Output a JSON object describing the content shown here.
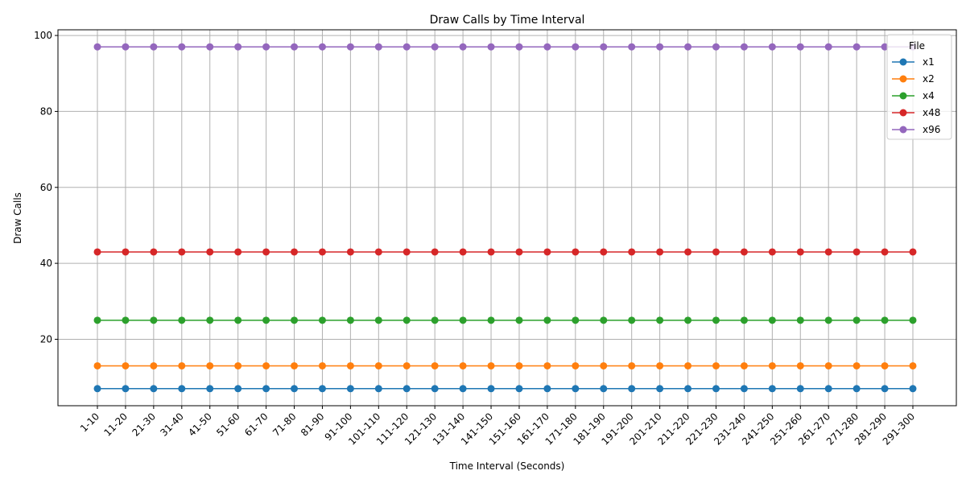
{
  "chart_data": {
    "type": "line",
    "title": "Draw Calls by Time Interval",
    "xlabel": "Time Interval (Seconds)",
    "ylabel": "Draw Calls",
    "categories": [
      "1-10",
      "11-20",
      "21-30",
      "31-40",
      "41-50",
      "51-60",
      "61-70",
      "71-80",
      "81-90",
      "91-100",
      "101-110",
      "111-120",
      "121-130",
      "131-140",
      "141-150",
      "151-160",
      "161-170",
      "171-180",
      "181-190",
      "191-200",
      "201-210",
      "211-220",
      "221-230",
      "231-240",
      "241-250",
      "251-260",
      "261-270",
      "271-280",
      "281-290",
      "291-300"
    ],
    "yticks": [
      20,
      40,
      60,
      80,
      100
    ],
    "ylim": [
      2.5,
      101.5
    ],
    "grid": true,
    "legend": {
      "title": "File",
      "placement": "top-right"
    },
    "series": [
      {
        "name": "x1",
        "color": "#1f77b4",
        "values": [
          7,
          7,
          7,
          7,
          7,
          7,
          7,
          7,
          7,
          7,
          7,
          7,
          7,
          7,
          7,
          7,
          7,
          7,
          7,
          7,
          7,
          7,
          7,
          7,
          7,
          7,
          7,
          7,
          7,
          7
        ]
      },
      {
        "name": "x2",
        "color": "#ff7f0e",
        "values": [
          13,
          13,
          13,
          13,
          13,
          13,
          13,
          13,
          13,
          13,
          13,
          13,
          13,
          13,
          13,
          13,
          13,
          13,
          13,
          13,
          13,
          13,
          13,
          13,
          13,
          13,
          13,
          13,
          13,
          13
        ]
      },
      {
        "name": "x4",
        "color": "#2ca02c",
        "values": [
          25,
          25,
          25,
          25,
          25,
          25,
          25,
          25,
          25,
          25,
          25,
          25,
          25,
          25,
          25,
          25,
          25,
          25,
          25,
          25,
          25,
          25,
          25,
          25,
          25,
          25,
          25,
          25,
          25,
          25
        ]
      },
      {
        "name": "x48",
        "color": "#d62728",
        "values": [
          43,
          43,
          43,
          43,
          43,
          43,
          43,
          43,
          43,
          43,
          43,
          43,
          43,
          43,
          43,
          43,
          43,
          43,
          43,
          43,
          43,
          43,
          43,
          43,
          43,
          43,
          43,
          43,
          43,
          43
        ]
      },
      {
        "name": "x96",
        "color": "#9467bd",
        "values": [
          97,
          97,
          97,
          97,
          97,
          97,
          97,
          97,
          97,
          97,
          97,
          97,
          97,
          97,
          97,
          97,
          97,
          97,
          97,
          97,
          97,
          97,
          97,
          97,
          97,
          97,
          97,
          97,
          97,
          97
        ]
      }
    ]
  }
}
